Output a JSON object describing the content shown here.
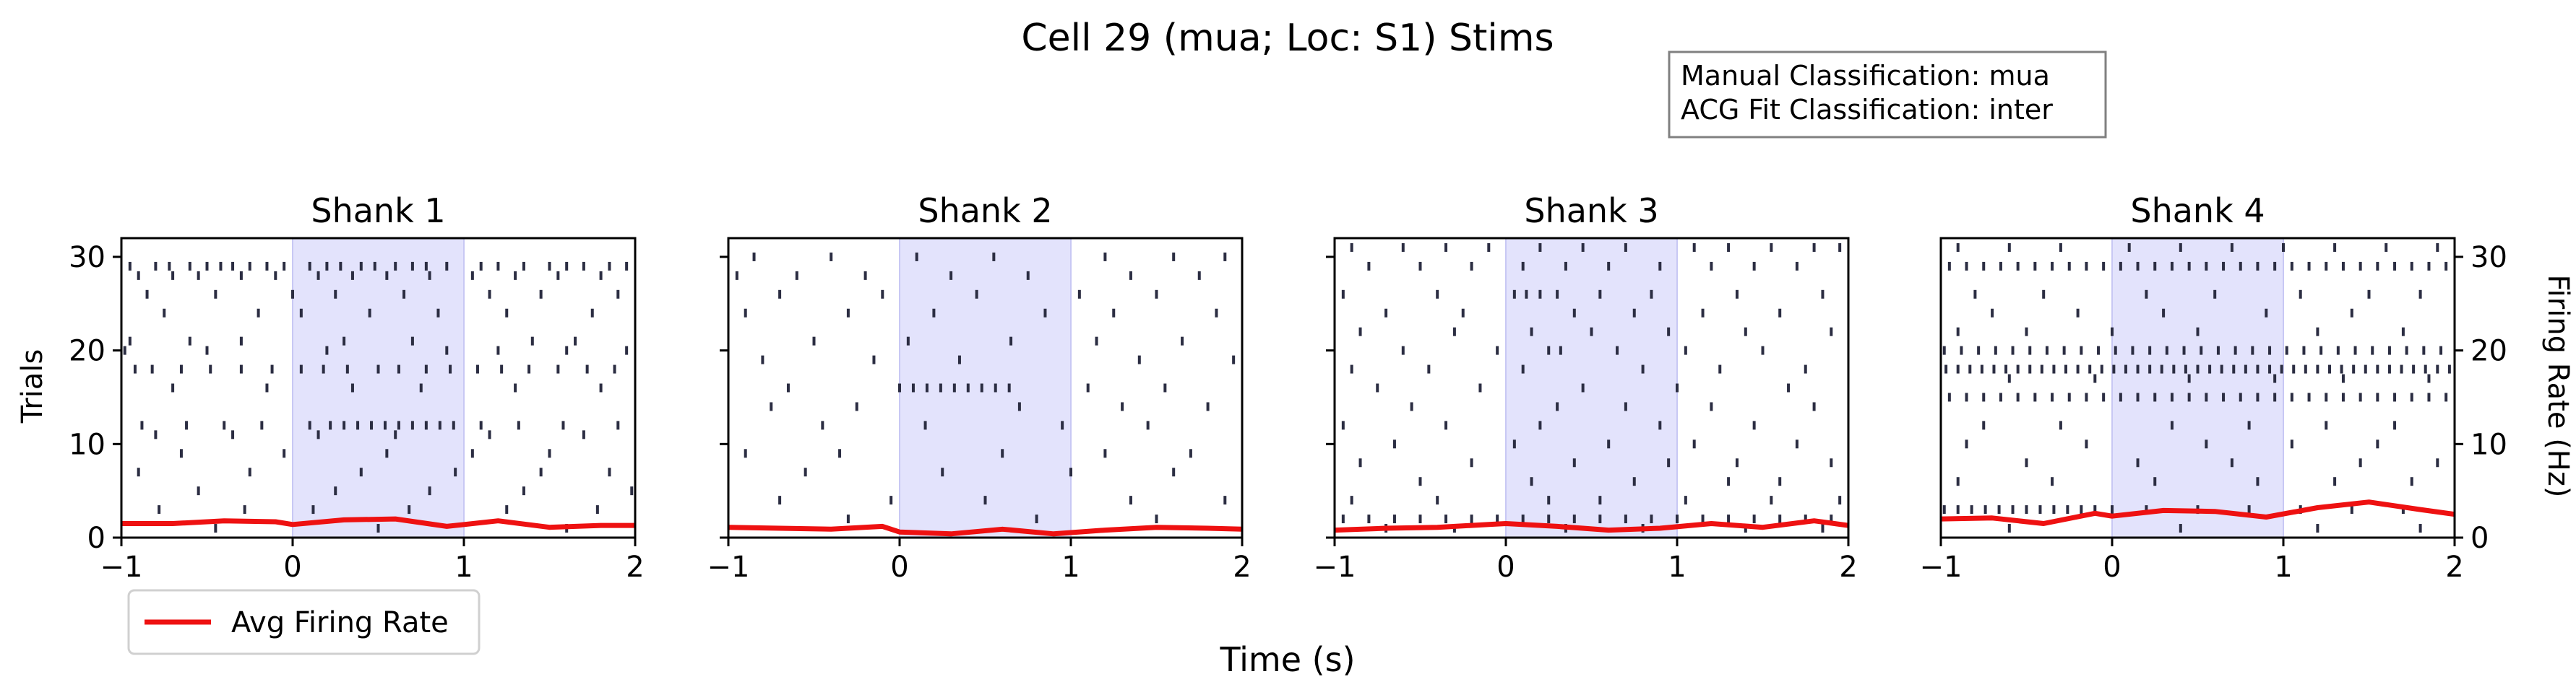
{
  "figure": {
    "title": "Cell 29 (mua; Loc: S1) Stims",
    "info_box": [
      "Manual Classification: mua",
      "ACG Fit Classification: inter"
    ],
    "xlabel": "Time (s)",
    "left_ylabel": "Trials",
    "right_ylabel": "Firing Rate (Hz)",
    "legend": {
      "label": "Avg Firing Rate",
      "color": "#ee1111",
      "placement": "lower-left"
    },
    "stim_window": [
      0,
      1
    ],
    "stim_color": "#e3e3fc",
    "spike_color": "#2b2d42"
  },
  "chart_data": [
    {
      "type": "raster",
      "title": "Shank 1",
      "xlim": [
        -1,
        2
      ],
      "ylim": [
        0,
        32
      ],
      "xticks": [
        -1,
        0,
        1,
        2
      ],
      "xtick_labels": [
        "−1",
        "0",
        "1",
        "2"
      ],
      "yticks": [
        0,
        10,
        20,
        30
      ],
      "ytick_labels": [
        "0",
        "10",
        "20",
        "30"
      ],
      "firing_rate": {
        "x": [
          -1.0,
          -0.7,
          -0.4,
          -0.1,
          0.0,
          0.3,
          0.6,
          0.9,
          1.2,
          1.5,
          1.8,
          2.0
        ],
        "y": [
          1.5,
          1.5,
          1.8,
          1.7,
          1.4,
          1.9,
          2.0,
          1.2,
          1.8,
          1.1,
          1.3,
          1.3
        ]
      },
      "spikes": [
        {
          "trial": 29,
          "times": [
            -0.95,
            -0.8,
            -0.72,
            -0.6,
            -0.5,
            -0.42,
            -0.35,
            -0.25,
            -0.15,
            -0.05,
            0.1,
            0.2,
            0.28,
            0.4,
            0.48,
            0.6,
            0.7,
            0.78,
            0.9,
            1.1,
            1.2,
            1.35,
            1.5,
            1.6,
            1.7,
            1.85,
            1.95
          ]
        },
        {
          "trial": 28,
          "times": [
            -0.9,
            -0.7,
            -0.55,
            -0.3,
            -0.1,
            0.15,
            0.35,
            0.55,
            0.8,
            1.05,
            1.3,
            1.55,
            1.8
          ]
        },
        {
          "trial": 26,
          "times": [
            -0.85,
            -0.45,
            0.0,
            0.25,
            0.65,
            1.15,
            1.45,
            1.9
          ]
        },
        {
          "trial": 24,
          "times": [
            -0.75,
            -0.2,
            0.05,
            0.45,
            0.85,
            1.25,
            1.75
          ]
        },
        {
          "trial": 21,
          "times": [
            -0.95,
            -0.6,
            -0.3,
            0.3,
            0.7,
            1.4,
            1.65
          ]
        },
        {
          "trial": 20,
          "times": [
            -0.98,
            -0.5,
            0.2,
            0.9,
            1.2,
            1.6,
            1.95
          ]
        },
        {
          "trial": 18,
          "times": [
            -0.92,
            -0.82,
            -0.65,
            -0.48,
            -0.3,
            -0.12,
            0.05,
            0.18,
            0.32,
            0.5,
            0.62,
            0.78,
            0.92,
            1.08,
            1.22,
            1.38,
            1.55,
            1.72,
            1.88
          ]
        },
        {
          "trial": 16,
          "times": [
            -0.7,
            -0.15,
            0.35,
            0.75,
            1.3,
            1.8
          ]
        },
        {
          "trial": 12,
          "times": [
            -0.88,
            -0.62,
            -0.4,
            -0.18,
            0.1,
            0.22,
            0.3,
            0.38,
            0.46,
            0.54,
            0.62,
            0.7,
            0.78,
            0.86,
            0.94,
            1.1,
            1.32,
            1.58,
            1.9
          ]
        },
        {
          "trial": 11,
          "times": [
            -0.8,
            -0.35,
            0.15,
            0.6,
            1.15,
            1.7
          ]
        },
        {
          "trial": 9,
          "times": [
            -0.65,
            -0.05,
            0.55,
            1.05,
            1.5
          ]
        },
        {
          "trial": 7,
          "times": [
            -0.9,
            -0.25,
            0.4,
            0.95,
            1.45,
            1.85
          ]
        },
        {
          "trial": 5,
          "times": [
            -0.55,
            0.25,
            0.8,
            1.35,
            1.98
          ]
        },
        {
          "trial": 3,
          "times": [
            -0.78,
            -0.28,
            0.12,
            0.68,
            1.25,
            1.78
          ]
        },
        {
          "trial": 1,
          "times": [
            -0.45,
            0.5,
            1.6
          ]
        }
      ]
    },
    {
      "type": "raster",
      "title": "Shank 2",
      "xlim": [
        -1,
        2
      ],
      "ylim": [
        0,
        32
      ],
      "xticks": [
        -1,
        0,
        1,
        2
      ],
      "xtick_labels": [
        "−1",
        "0",
        "1",
        "2"
      ],
      "yticks": [
        0,
        10,
        20,
        30
      ],
      "ytick_labels": [
        "",
        "",
        "",
        ""
      ],
      "firing_rate": {
        "x": [
          -1.0,
          -0.7,
          -0.4,
          -0.1,
          0.0,
          0.3,
          0.6,
          0.9,
          1.2,
          1.5,
          1.8,
          2.0
        ],
        "y": [
          1.1,
          1.0,
          0.9,
          1.2,
          0.6,
          0.4,
          0.9,
          0.4,
          0.8,
          1.1,
          1.0,
          0.9
        ]
      },
      "spikes": [
        {
          "trial": 30,
          "times": [
            -0.85,
            -0.4,
            0.1,
            0.55,
            1.2,
            1.6,
            1.9
          ]
        },
        {
          "trial": 28,
          "times": [
            -0.95,
            -0.6,
            -0.2,
            0.3,
            0.75,
            1.35,
            1.75
          ]
        },
        {
          "trial": 26,
          "times": [
            -0.7,
            -0.1,
            0.45,
            1.05,
            1.5
          ]
        },
        {
          "trial": 24,
          "times": [
            -0.9,
            -0.3,
            0.2,
            0.85,
            1.25,
            1.85
          ]
        },
        {
          "trial": 21,
          "times": [
            -0.5,
            0.05,
            0.65,
            1.15,
            1.65
          ]
        },
        {
          "trial": 19,
          "times": [
            -0.8,
            -0.15,
            0.35,
            1.4,
            1.95
          ]
        },
        {
          "trial": 16,
          "times": [
            -0.65,
            0.0,
            0.08,
            0.16,
            0.24,
            0.32,
            0.4,
            0.48,
            0.56,
            0.64,
            1.1,
            1.55
          ]
        },
        {
          "trial": 14,
          "times": [
            -0.75,
            -0.25,
            0.7,
            1.3,
            1.8
          ]
        },
        {
          "trial": 12,
          "times": [
            -0.45,
            0.15,
            0.95,
            1.45
          ]
        },
        {
          "trial": 9,
          "times": [
            -0.9,
            -0.35,
            0.6,
            1.2,
            1.7
          ]
        },
        {
          "trial": 7,
          "times": [
            -0.55,
            0.25,
            1.0,
            1.6
          ]
        },
        {
          "trial": 4,
          "times": [
            -0.7,
            -0.05,
            0.5,
            1.35,
            1.9
          ]
        },
        {
          "trial": 2,
          "times": [
            -0.3,
            0.8,
            1.5
          ]
        }
      ]
    },
    {
      "type": "raster",
      "title": "Shank 3",
      "xlim": [
        -1,
        2
      ],
      "ylim": [
        0,
        32
      ],
      "xticks": [
        -1,
        0,
        1,
        2
      ],
      "xtick_labels": [
        "−1",
        "0",
        "1",
        "2"
      ],
      "yticks": [
        0,
        10,
        20,
        30
      ],
      "ytick_labels": [
        "",
        "",
        "",
        ""
      ],
      "firing_rate": {
        "x": [
          -1.0,
          -0.7,
          -0.4,
          -0.1,
          0.0,
          0.3,
          0.6,
          0.9,
          1.2,
          1.5,
          1.8,
          2.0
        ],
        "y": [
          0.8,
          1.0,
          1.1,
          1.4,
          1.5,
          1.2,
          0.8,
          1.0,
          1.5,
          1.1,
          1.8,
          1.3
        ]
      },
      "spikes": [
        {
          "trial": 31,
          "times": [
            -0.9,
            -0.6,
            -0.35,
            -0.1,
            0.2,
            0.45,
            0.7,
            1.1,
            1.3,
            1.55,
            1.8,
            1.95
          ]
        },
        {
          "trial": 29,
          "times": [
            -0.8,
            -0.5,
            -0.2,
            0.1,
            0.35,
            0.6,
            0.9,
            1.2,
            1.45,
            1.7
          ]
        },
        {
          "trial": 26,
          "times": [
            -0.95,
            -0.4,
            0.05,
            0.12,
            0.2,
            0.3,
            0.55,
            0.85,
            1.35,
            1.85
          ]
        },
        {
          "trial": 24,
          "times": [
            -0.7,
            -0.25,
            0.4,
            0.75,
            1.15,
            1.6
          ]
        },
        {
          "trial": 22,
          "times": [
            -0.85,
            -0.3,
            0.15,
            0.5,
            0.95,
            1.4,
            1.9
          ]
        },
        {
          "trial": 20,
          "times": [
            -0.6,
            -0.05,
            0.25,
            0.32,
            0.65,
            1.05,
            1.5
          ]
        },
        {
          "trial": 18,
          "times": [
            -0.9,
            -0.45,
            0.1,
            0.8,
            1.25,
            1.75
          ]
        },
        {
          "trial": 16,
          "times": [
            -0.75,
            -0.15,
            0.45,
            1.0,
            1.65
          ]
        },
        {
          "trial": 14,
          "times": [
            -0.55,
            0.3,
            0.7,
            1.2,
            1.8
          ]
        },
        {
          "trial": 12,
          "times": [
            -0.95,
            -0.35,
            0.2,
            0.9,
            1.45
          ]
        },
        {
          "trial": 10,
          "times": [
            -0.65,
            0.05,
            0.6,
            1.1,
            1.7
          ]
        },
        {
          "trial": 8,
          "times": [
            -0.85,
            -0.2,
            0.4,
            0.95,
            1.35,
            1.9
          ]
        },
        {
          "trial": 6,
          "times": [
            -0.5,
            0.15,
            0.75,
            1.3,
            1.6
          ]
        },
        {
          "trial": 4,
          "times": [
            -0.9,
            -0.4,
            0.25,
            0.55,
            1.05,
            1.55,
            1.95
          ]
        },
        {
          "trial": 2,
          "times": [
            -0.95,
            -0.8,
            -0.65,
            -0.5,
            -0.35,
            -0.2,
            -0.05,
            0.1,
            0.25,
            0.4,
            0.55,
            0.7,
            0.85,
            1.0,
            1.15,
            1.3,
            1.45,
            1.6,
            1.75,
            1.9
          ]
        },
        {
          "trial": 1,
          "times": [
            -0.7,
            -0.3,
            0.35,
            0.8,
            1.4,
            1.85
          ]
        }
      ]
    },
    {
      "type": "raster",
      "title": "Shank 4",
      "xlim": [
        -1,
        2
      ],
      "ylim": [
        0,
        32
      ],
      "xticks": [
        -1,
        0,
        1,
        2
      ],
      "xtick_labels": [
        "−1",
        "0",
        "1",
        "2"
      ],
      "yticks": [
        0,
        10,
        20,
        30
      ],
      "ytick_labels": [
        "0",
        "10",
        "20",
        "30"
      ],
      "yaxis_side": "right",
      "firing_rate": {
        "x": [
          -1.0,
          -0.7,
          -0.4,
          -0.1,
          0.0,
          0.3,
          0.6,
          0.9,
          1.2,
          1.5,
          1.8,
          2.0
        ],
        "y": [
          2.0,
          2.1,
          1.5,
          2.6,
          2.3,
          2.9,
          2.8,
          2.2,
          3.2,
          3.8,
          3.0,
          2.5
        ]
      },
      "spikes": [
        {
          "trial": 31,
          "times": [
            -0.9,
            -0.6,
            -0.3,
            0.1,
            0.4,
            0.7,
            1.0,
            1.3,
            1.6,
            1.9
          ]
        },
        {
          "trial": 29,
          "times": [
            -0.95,
            -0.85,
            -0.75,
            -0.65,
            -0.55,
            -0.45,
            -0.35,
            -0.25,
            -0.15,
            -0.05,
            0.05,
            0.15,
            0.25,
            0.35,
            0.45,
            0.55,
            0.65,
            0.75,
            0.85,
            0.95,
            1.05,
            1.15,
            1.25,
            1.35,
            1.45,
            1.55,
            1.65,
            1.75,
            1.85,
            1.95
          ]
        },
        {
          "trial": 26,
          "times": [
            -0.8,
            -0.4,
            0.2,
            0.6,
            1.1,
            1.5,
            1.8
          ]
        },
        {
          "trial": 24,
          "times": [
            -0.7,
            -0.2,
            0.3,
            0.9,
            1.4
          ]
        },
        {
          "trial": 22,
          "times": [
            -0.9,
            -0.5,
            0.0,
            0.5,
            1.2,
            1.7
          ]
        },
        {
          "trial": 20,
          "times": [
            -0.98,
            -0.88,
            -0.78,
            -0.68,
            -0.58,
            -0.48,
            -0.38,
            -0.28,
            -0.18,
            -0.08,
            0.02,
            0.12,
            0.22,
            0.32,
            0.42,
            0.52,
            0.62,
            0.72,
            0.82,
            0.92,
            1.02,
            1.12,
            1.22,
            1.32,
            1.42,
            1.52,
            1.62,
            1.72,
            1.82,
            1.92
          ]
        },
        {
          "trial": 18,
          "times": [
            -0.97,
            -0.9,
            -0.83,
            -0.76,
            -0.69,
            -0.62,
            -0.55,
            -0.48,
            -0.41,
            -0.34,
            -0.27,
            -0.2,
            -0.13,
            -0.06,
            0.01,
            0.08,
            0.15,
            0.22,
            0.29,
            0.36,
            0.43,
            0.5,
            0.57,
            0.64,
            0.71,
            0.78,
            0.85,
            0.92,
            0.99,
            1.06,
            1.13,
            1.2,
            1.27,
            1.34,
            1.41,
            1.48,
            1.55,
            1.62,
            1.69,
            1.76,
            1.83,
            1.9,
            1.97
          ]
        },
        {
          "trial": 17,
          "times": [
            -0.6,
            -0.1,
            0.45,
            0.95,
            1.35,
            1.85
          ]
        },
        {
          "trial": 15,
          "times": [
            -0.95,
            -0.85,
            -0.75,
            -0.65,
            -0.55,
            -0.45,
            -0.35,
            -0.25,
            -0.15,
            -0.05,
            0.05,
            0.15,
            0.25,
            0.35,
            0.45,
            0.55,
            0.65,
            0.75,
            0.85,
            0.95,
            1.05,
            1.15,
            1.25,
            1.35,
            1.45,
            1.55,
            1.65,
            1.75,
            1.85,
            1.95
          ]
        },
        {
          "trial": 12,
          "times": [
            -0.75,
            -0.3,
            0.35,
            0.8,
            1.25,
            1.65
          ]
        },
        {
          "trial": 10,
          "times": [
            -0.85,
            -0.15,
            0.55,
            1.05,
            1.55
          ]
        },
        {
          "trial": 8,
          "times": [
            -0.5,
            0.15,
            0.7,
            1.45,
            1.9
          ]
        },
        {
          "trial": 6,
          "times": [
            -0.9,
            -0.35,
            0.25,
            0.85,
            1.3,
            1.75
          ]
        },
        {
          "trial": 3,
          "times": [
            -0.98,
            -0.9,
            -0.82,
            -0.74,
            -0.66,
            -0.58,
            -0.5,
            -0.42,
            -0.34,
            -0.26,
            -0.18,
            -0.1,
            0.0,
            0.2,
            0.5,
            0.8,
            1.1,
            1.4,
            1.7
          ]
        },
        {
          "trial": 1,
          "times": [
            -0.6,
            0.4,
            1.2,
            1.8
          ]
        }
      ]
    }
  ]
}
